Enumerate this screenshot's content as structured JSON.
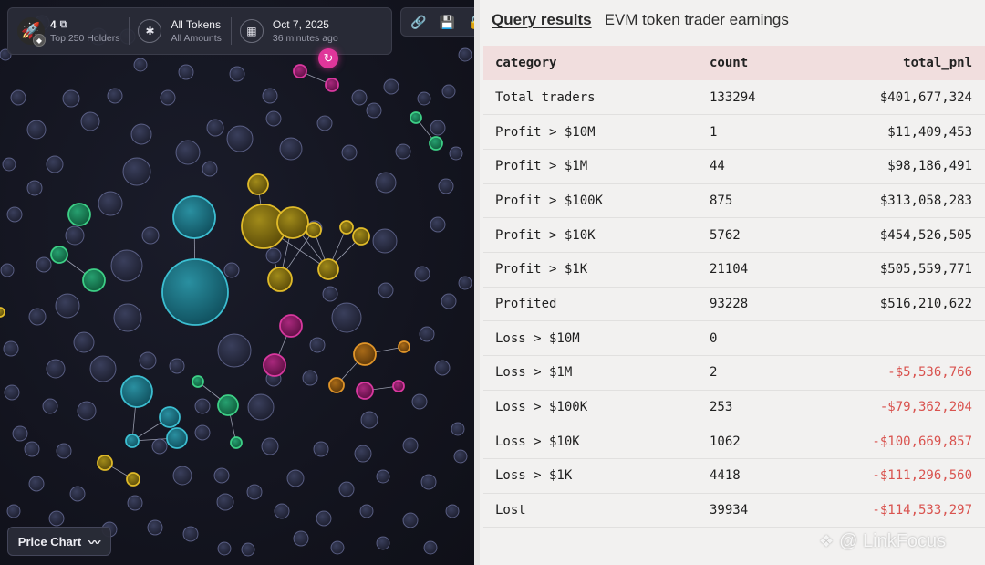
{
  "toolbar": {
    "token_name": "4",
    "holders_filter": "Top 250 Holders",
    "token_filter": "All Tokens",
    "amount_filter": "All Amounts",
    "date": "Oct 7, 2025",
    "updated": "36 minutes ago",
    "icons": {
      "token": "rocket-icon",
      "chain": "bnb-icon",
      "copy": "copy-icon",
      "filter": "asterisk-icon",
      "calendar": "calendar-icon",
      "link": "link-icon",
      "save": "save-icon",
      "lock": "lock-icon",
      "refresh": "refresh-icon",
      "chart": "line-chart-icon"
    }
  },
  "price_chart_label": "Price Chart",
  "results": {
    "tab_label": "Query results",
    "title": "EVM token trader earnings",
    "columns": [
      "category",
      "count",
      "total_pnl"
    ],
    "rows": [
      {
        "category": "Total traders",
        "count": "133294",
        "total_pnl": "$401,677,324",
        "negative": false
      },
      {
        "category": "Profit > $10M",
        "count": "1",
        "total_pnl": "$11,409,453",
        "negative": false
      },
      {
        "category": "Profit > $1M",
        "count": "44",
        "total_pnl": "$98,186,491",
        "negative": false
      },
      {
        "category": "Profit > $100K",
        "count": "875",
        "total_pnl": "$313,058,283",
        "negative": false
      },
      {
        "category": "Profit > $10K",
        "count": "5762",
        "total_pnl": "$454,526,505",
        "negative": false
      },
      {
        "category": "Profit > $1K",
        "count": "21104",
        "total_pnl": "$505,559,771",
        "negative": false
      },
      {
        "category": "Profited",
        "count": "93228",
        "total_pnl": "$516,210,622",
        "negative": false
      },
      {
        "category": "Loss > $10M",
        "count": "0",
        "total_pnl": "",
        "negative": false
      },
      {
        "category": "Loss > $1M",
        "count": "2",
        "total_pnl": "-$5,536,766",
        "negative": true
      },
      {
        "category": "Loss > $100K",
        "count": "253",
        "total_pnl": "-$79,362,204",
        "negative": true
      },
      {
        "category": "Loss > $10K",
        "count": "1062",
        "total_pnl": "-$100,669,857",
        "negative": true
      },
      {
        "category": "Loss > $1K",
        "count": "4418",
        "total_pnl": "-$111,296,560",
        "negative": true
      },
      {
        "category": "Lost",
        "count": "39934",
        "total_pnl": "-$114,533,297",
        "negative": true
      }
    ]
  },
  "watermark": "@ LinkFocus",
  "colors": {
    "negative": "#d9534f",
    "header_bg": "#f1dede",
    "bubble_grey": "#8a92c8",
    "bubble_cyan": "#3ec5d8",
    "bubble_yellow": "#e8c12a",
    "bubble_magenta": "#e03aa4",
    "bubble_green": "#3fd68a",
    "bubble_orange": "#e89a2a"
  }
}
